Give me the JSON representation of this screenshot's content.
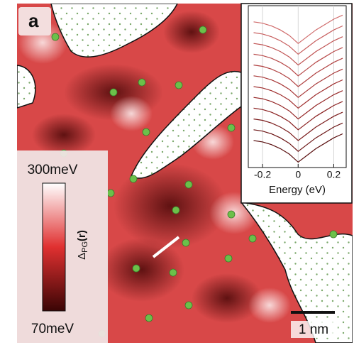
{
  "panel_label": "a",
  "colorbar": {
    "max_label": "300meV",
    "min_label": "70meV",
    "label": {
      "symbol": "Δ",
      "subscript": "PG",
      "argument": "(r)"
    }
  },
  "scale_bar": "1 nm",
  "chart_data": {
    "type": "line",
    "xlabel": "Energy (eV)",
    "x": [
      -0.25,
      -0.2,
      -0.15,
      -0.1,
      -0.05,
      0,
      0.05,
      0.1,
      0.15,
      0.2,
      0.25
    ],
    "xlim": [
      -0.28,
      0.27
    ],
    "xticks": [
      -0.2,
      0,
      0.2
    ],
    "ylim": [
      0,
      12
    ],
    "series": [
      {
        "color": "#5a1010",
        "values": [
          2.0,
          1.9,
          1.7,
          1.4,
          1.0,
          0.4,
          0.9,
          1.4,
          1.8,
          2.2,
          2.5
        ]
      },
      {
        "color": "#6b1414",
        "values": [
          2.8,
          2.7,
          2.5,
          2.2,
          1.8,
          1.2,
          1.7,
          2.2,
          2.6,
          3.0,
          3.3
        ]
      },
      {
        "color": "#7a1a1a",
        "values": [
          3.6,
          3.5,
          3.3,
          3.0,
          2.6,
          2.0,
          2.5,
          3.0,
          3.4,
          3.8,
          4.1
        ]
      },
      {
        "color": "#8a2020",
        "values": [
          4.4,
          4.3,
          4.1,
          3.8,
          3.4,
          2.8,
          3.3,
          3.8,
          4.2,
          4.6,
          4.9
        ]
      },
      {
        "color": "#962828",
        "values": [
          5.2,
          5.1,
          4.9,
          4.6,
          4.2,
          3.6,
          4.1,
          4.6,
          5.0,
          5.4,
          5.7
        ]
      },
      {
        "color": "#a03030",
        "values": [
          6.0,
          5.9,
          5.7,
          5.4,
          5.0,
          4.4,
          4.9,
          5.4,
          5.8,
          6.2,
          6.5
        ]
      },
      {
        "color": "#a83838",
        "values": [
          6.8,
          6.7,
          6.5,
          6.2,
          5.8,
          5.2,
          5.7,
          6.2,
          6.6,
          7.0,
          7.3
        ]
      },
      {
        "color": "#b04040",
        "values": [
          7.6,
          7.5,
          7.3,
          7.0,
          6.6,
          6.0,
          6.5,
          7.0,
          7.4,
          7.8,
          8.1
        ]
      },
      {
        "color": "#b84a4a",
        "values": [
          8.4,
          8.3,
          8.1,
          7.8,
          7.4,
          6.8,
          7.3,
          7.8,
          8.2,
          8.6,
          8.9
        ]
      },
      {
        "color": "#c05454",
        "values": [
          9.2,
          9.1,
          8.9,
          8.6,
          8.2,
          7.6,
          8.1,
          8.6,
          9.0,
          9.4,
          9.7
        ]
      },
      {
        "color": "#c86060",
        "values": [
          10.0,
          9.9,
          9.7,
          9.4,
          9.0,
          8.4,
          8.9,
          9.4,
          9.8,
          10.2,
          10.5
        ]
      },
      {
        "color": "#d06c6c",
        "values": [
          10.8,
          10.7,
          10.5,
          10.2,
          9.8,
          9.2,
          9.7,
          10.2,
          10.6,
          11.0,
          11.3
        ]
      }
    ]
  }
}
